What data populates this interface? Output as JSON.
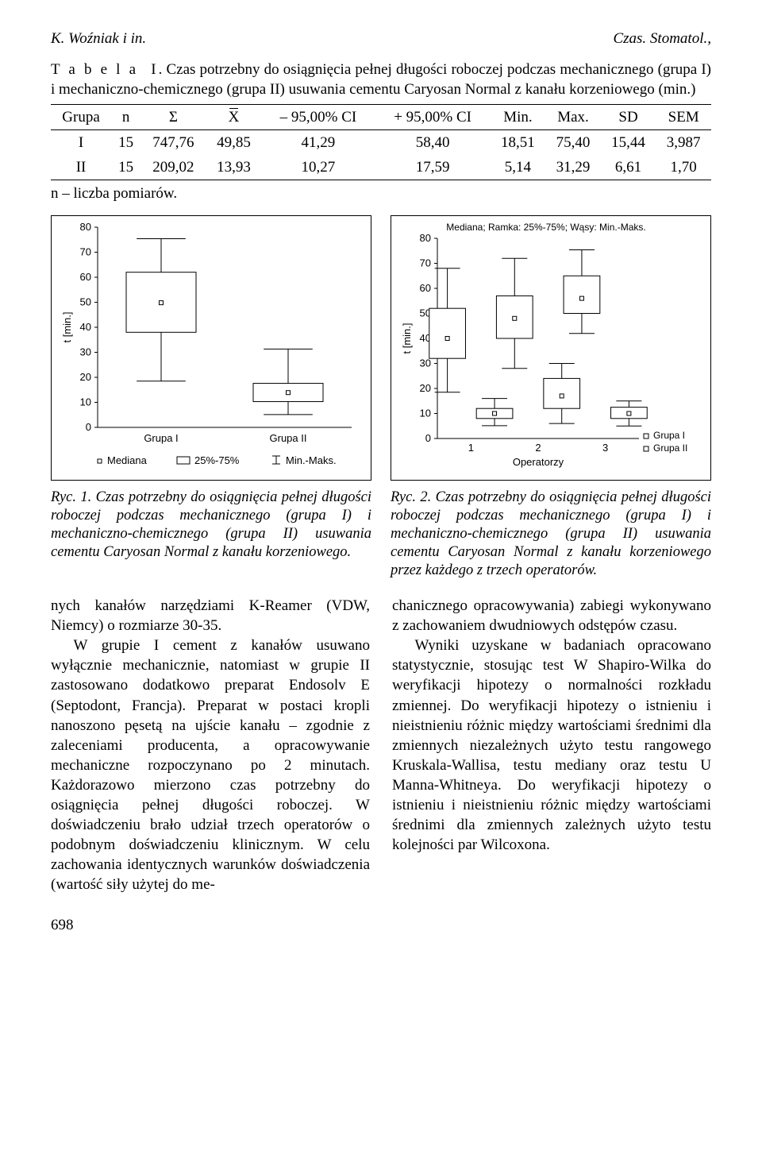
{
  "header": {
    "left": "K. Woźniak i in.",
    "right": "Czas. Stomatol.,"
  },
  "table": {
    "label_prefix": "T a b e l a  I",
    "caption": ". Czas potrzebny do osiągnięcia pełnej długości roboczej podczas mechanicznego (grupa I) i mechaniczno-chemicznego (grupa II) usuwania cementu Caryosan Normal z kanału korzeniowego (min.)",
    "columns": [
      "Grupa",
      "n",
      "Σ",
      "X",
      "– 95,00% CI",
      "+ 95,00% CI",
      "Min.",
      "Max.",
      "SD",
      "SEM"
    ],
    "rows": [
      [
        "I",
        "15",
        "747,76",
        "49,85",
        "41,29",
        "58,40",
        "18,51",
        "75,40",
        "15,44",
        "3,987"
      ],
      [
        "II",
        "15",
        "209,02",
        "13,93",
        "10,27",
        "17,59",
        "5,14",
        "31,29",
        "6,61",
        "1,70"
      ]
    ],
    "footnote": "n – liczba pomiarów."
  },
  "fig1": {
    "type": "boxplot",
    "ylabel": "t [min.]",
    "yticks": [
      0,
      10,
      20,
      30,
      40,
      50,
      60,
      70,
      80
    ],
    "categories": [
      "Grupa I",
      "Grupa II"
    ],
    "boxes": [
      {
        "min": 18.5,
        "q1": 38,
        "med": 49.8,
        "q3": 62,
        "max": 75.4
      },
      {
        "min": 5.1,
        "q1": 10.3,
        "med": 13.9,
        "q3": 17.6,
        "max": 31.3
      }
    ],
    "legend": {
      "median": "Mediana",
      "box": "25%-75%",
      "whisk": "Min.-Maks."
    },
    "caption": "Ryc. 1. Czas potrzebny do osiągnięcia pełnej długości roboczej podczas mechanicznego (grupa I) i mechaniczno-chemicznego (grupa II) usuwania cementu Caryosan Normal z kanału korzeniowego.",
    "box_width": 0.5,
    "stroke": "#000000",
    "bg": "#ffffff"
  },
  "fig2": {
    "type": "boxplot-grouped",
    "title": "Mediana; Ramka: 25%-75%; Wąsy: Min.-Maks.",
    "ylabel": "t [min.]",
    "xlabel": "Operatorzy",
    "yticks": [
      0,
      10,
      20,
      30,
      40,
      50,
      60,
      70,
      80
    ],
    "xticks": [
      "1",
      "2",
      "3"
    ],
    "legend": [
      "Grupa I",
      "Grupa II"
    ],
    "groups": [
      {
        "g1": {
          "min": 18.5,
          "q1": 32,
          "med": 40,
          "q3": 52,
          "max": 68
        },
        "g2": {
          "min": 5.1,
          "q1": 8,
          "med": 10,
          "q3": 12,
          "max": 16
        }
      },
      {
        "g1": {
          "min": 28,
          "q1": 40,
          "med": 48,
          "q3": 57,
          "max": 72
        },
        "g2": {
          "min": 6,
          "q1": 12,
          "med": 17,
          "q3": 24,
          "max": 30
        }
      },
      {
        "g1": {
          "min": 42,
          "q1": 50,
          "med": 56,
          "q3": 65,
          "max": 75.4
        },
        "g2": {
          "min": 5,
          "q1": 8,
          "med": 10,
          "q3": 12.5,
          "max": 15
        }
      }
    ],
    "caption": "Ryc. 2. Czas potrzebny do osiągnięcia pełnej długości roboczej podczas mechanicznego (grupa I) i mechaniczno-chemicznego (grupa II) usuwania cementu Caryosan Normal z kanału korzeniowego przez każdego z trzech operatorów.",
    "box_width": 0.18,
    "stroke": "#000000",
    "bg": "#ffffff"
  },
  "body": {
    "left": [
      "nych kanałów narzędziami K-Reamer (VDW, Niemcy) o rozmiarze 30-35.",
      "W grupie I cement z kanałów usuwano wyłącznie mechanicznie, natomiast w grupie II zastosowano dodatkowo preparat Endosolv E (Septodont, Francja). Preparat w postaci kropli nanoszono pęsetą na ujście kanału – zgodnie z zaleceniami producenta, a opracowywanie mechaniczne rozpoczynano po 2 minutach. Każdorazowo mierzono czas potrzebny do osiągnięcia pełnej długości roboczej. W doświadczeniu brało udział trzech operatorów o podobnym doświadczeniu klinicznym. W celu zachowania identycznych warunków doświadczenia (wartość siły użytej do me-"
    ],
    "right": [
      "chanicznego opracowywania) zabiegi wykonywano z zachowaniem dwudniowych odstępów czasu.",
      "Wyniki uzyskane w badaniach opracowano statystycznie, stosując test W Shapiro-Wilka do weryfikacji hipotezy o normalności rozkładu zmiennej. Do weryfikacji hipotezy o istnieniu i nieistnieniu różnic między wartościami średnimi dla zmiennych niezależnych użyto testu rangowego Kruskala-Wallisa, testu mediany oraz testu U Manna-Whitneya. Do weryfikacji hipotezy o istnieniu i nieistnieniu różnic między wartościami średnimi dla zmiennych zależnych użyto testu kolejności par Wilcoxona."
    ]
  },
  "page_number": "698"
}
